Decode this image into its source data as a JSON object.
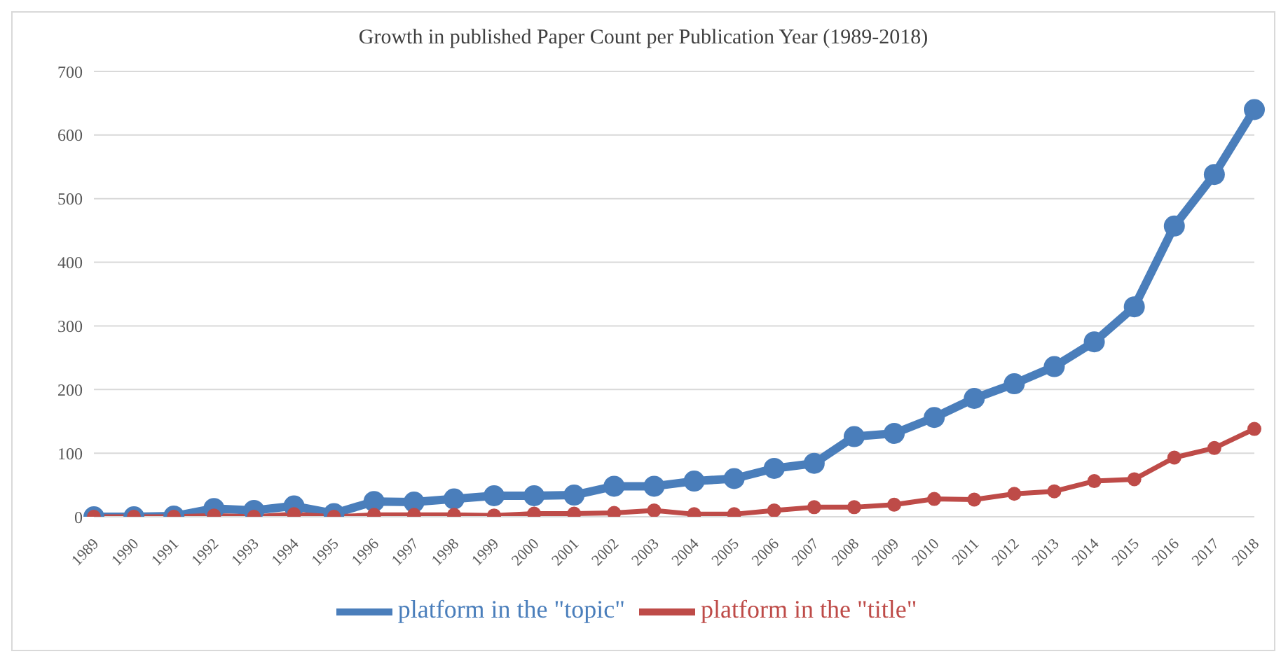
{
  "chart_data": {
    "type": "line",
    "title": "Growth in published Paper Count per Publication Year (1989-2018)",
    "categories": [
      "1989",
      "1990",
      "1991",
      "1992",
      "1993",
      "1994",
      "1995",
      "1996",
      "1997",
      "1998",
      "1999",
      "2000",
      "2001",
      "2002",
      "2003",
      "2004",
      "2005",
      "2006",
      "2007",
      "2008",
      "2009",
      "2010",
      "2011",
      "2012",
      "2013",
      "2014",
      "2015",
      "2016",
      "2017",
      "2018"
    ],
    "series": [
      {
        "name": "platform in the \"topic\"",
        "color": "#4a7ebb",
        "values": [
          0,
          0,
          1,
          13,
          10,
          17,
          5,
          24,
          23,
          28,
          33,
          33,
          34,
          48,
          48,
          56,
          60,
          76,
          84,
          126,
          131,
          156,
          186,
          209,
          236,
          275,
          330,
          457,
          538,
          640
        ]
      },
      {
        "name": "platform in the \"title\"",
        "color": "#be4b48",
        "values": [
          0,
          0,
          0,
          2,
          0,
          4,
          0,
          3,
          3,
          3,
          2,
          5,
          5,
          6,
          10,
          4,
          4,
          10,
          15,
          15,
          19,
          28,
          27,
          36,
          40,
          56,
          59,
          93,
          108,
          138
        ]
      }
    ],
    "ylim": [
      0,
      700
    ],
    "yticks": [
      0,
      100,
      200,
      300,
      400,
      500,
      600,
      700
    ],
    "grid": "y",
    "legend": "bottom",
    "marker": "circle",
    "line_style": "solid"
  }
}
